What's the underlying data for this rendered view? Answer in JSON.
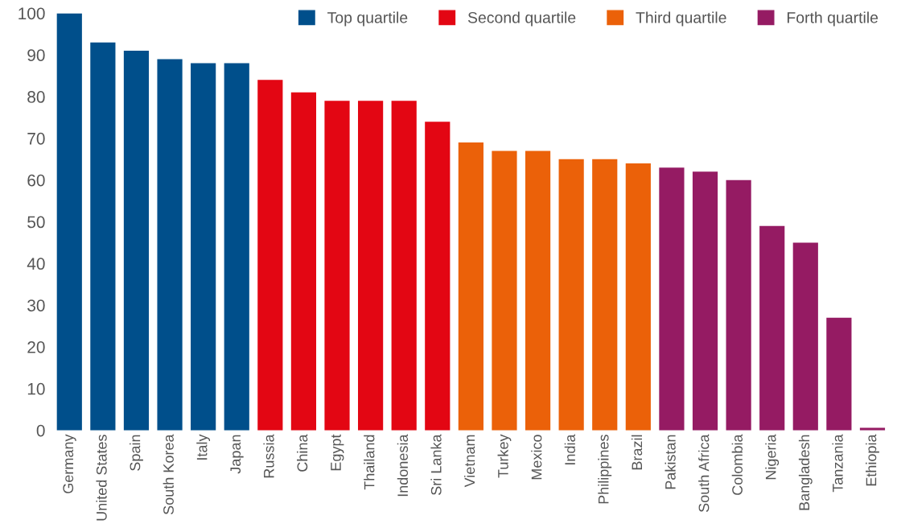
{
  "chart_data": {
    "type": "bar",
    "categories": [
      "Germany",
      "United States",
      "Spain",
      "South Korea",
      "Italy",
      "Japan",
      "Russia",
      "China",
      "Egypt",
      "Thailand",
      "Indonesia",
      "Sri Lanka",
      "Vietnam",
      "Turkey",
      "Mexico",
      "India",
      "Philippines",
      "Brazil",
      "Pakistan",
      "South Africa",
      "Colombia",
      "Nigeria",
      "Bangladesh",
      "Tanzania",
      "Ethiopia"
    ],
    "series": [
      {
        "name": "Top quartile",
        "color": "#004f8b",
        "values": [
          100,
          93,
          91,
          89,
          88,
          88,
          null,
          null,
          null,
          null,
          null,
          null,
          null,
          null,
          null,
          null,
          null,
          null,
          null,
          null,
          null,
          null,
          null,
          null,
          null
        ]
      },
      {
        "name": "Second quartile",
        "color": "#e30613",
        "values": [
          null,
          null,
          null,
          null,
          null,
          null,
          84,
          81,
          79,
          79,
          79,
          74,
          null,
          null,
          null,
          null,
          null,
          null,
          null,
          null,
          null,
          null,
          null,
          null,
          null
        ]
      },
      {
        "name": "Third quartile",
        "color": "#eb6109",
        "values": [
          null,
          null,
          null,
          null,
          null,
          null,
          null,
          null,
          null,
          null,
          null,
          null,
          69,
          67,
          67,
          65,
          65,
          64,
          null,
          null,
          null,
          null,
          null,
          null,
          null
        ]
      },
      {
        "name": "Forth quartile",
        "color": "#951b63",
        "values": [
          null,
          null,
          null,
          null,
          null,
          null,
          null,
          null,
          null,
          null,
          null,
          null,
          null,
          null,
          null,
          null,
          null,
          null,
          63,
          62,
          60,
          49,
          45,
          27,
          0.6
        ]
      }
    ],
    "ylim": [
      0,
      100
    ],
    "yticks": [
      0,
      10,
      20,
      30,
      40,
      50,
      60,
      70,
      80,
      90,
      100
    ],
    "legend": "top right",
    "grid": false
  }
}
